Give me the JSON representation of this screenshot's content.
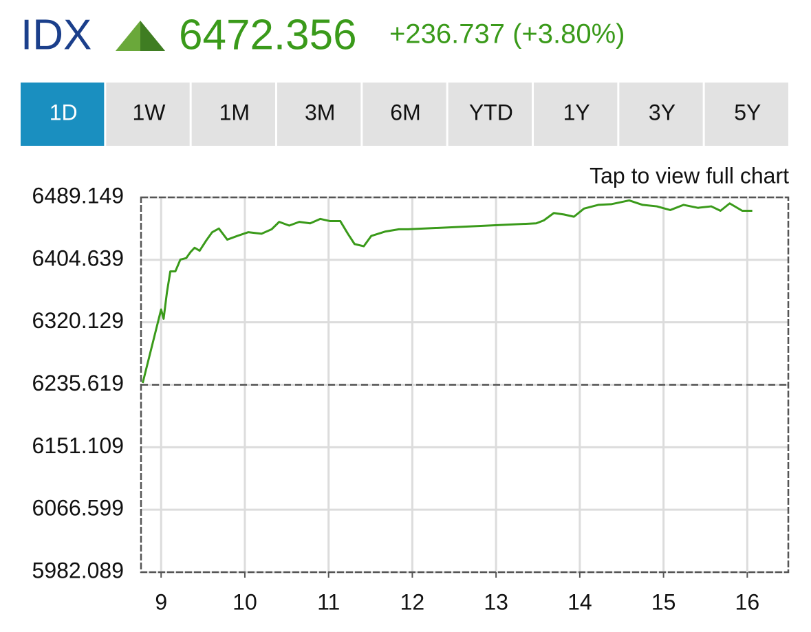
{
  "header": {
    "symbol": "IDX",
    "price": "6472.356",
    "change": "+236.737 (+3.80%)"
  },
  "tabs": [
    "1D",
    "1W",
    "1M",
    "3M",
    "6M",
    "YTD",
    "1Y",
    "3Y",
    "5Y"
  ],
  "active_tab": 0,
  "chart_data": {
    "type": "line",
    "annotation": "Tap to view full chart",
    "x": [
      8.78,
      9.0,
      9.03,
      9.07,
      9.11,
      9.17,
      9.23,
      9.3,
      9.35,
      9.4,
      9.46,
      9.54,
      9.61,
      9.69,
      9.79,
      9.91,
      10.04,
      10.2,
      10.32,
      10.41,
      10.53,
      10.65,
      10.78,
      10.9,
      11.02,
      11.14,
      11.23,
      11.31,
      11.42,
      11.51,
      11.68,
      11.84,
      11.95,
      13.48,
      13.57,
      13.69,
      13.81,
      13.93,
      14.05,
      14.22,
      14.38,
      14.59,
      14.75,
      14.92,
      15.08,
      15.24,
      15.41,
      15.57,
      15.68,
      15.79,
      15.94,
      16.06
    ],
    "series": [
      {
        "color": "#3a9a1a",
        "values": [
          6238,
          6337.5,
          6325,
          6361,
          6389,
          6389,
          6405,
          6407,
          6415,
          6421,
          6417,
          6431,
          6442,
          6447,
          6432,
          6437,
          6442,
          6440,
          6446,
          6456,
          6451,
          6456,
          6454,
          6460,
          6457,
          6457,
          6440,
          6426,
          6423,
          6437,
          6443,
          6446,
          6446,
          6454,
          6458,
          6468,
          6466,
          6463,
          6474,
          6479,
          6480,
          6485,
          6479,
          6477,
          6472,
          6479,
          6475,
          6477,
          6471,
          6481,
          6471,
          6471
        ]
      }
    ],
    "reference_line": 6235.619,
    "xlim": [
      8.76,
      16.49
    ],
    "xticks": [
      9,
      10,
      11,
      12,
      13,
      14,
      15,
      16
    ],
    "ylim": [
      5982.089,
      6489.149
    ],
    "yticks": [
      5982.089,
      6066.599,
      6151.109,
      6235.619,
      6320.129,
      6404.639,
      6489.149
    ],
    "grid": true
  }
}
